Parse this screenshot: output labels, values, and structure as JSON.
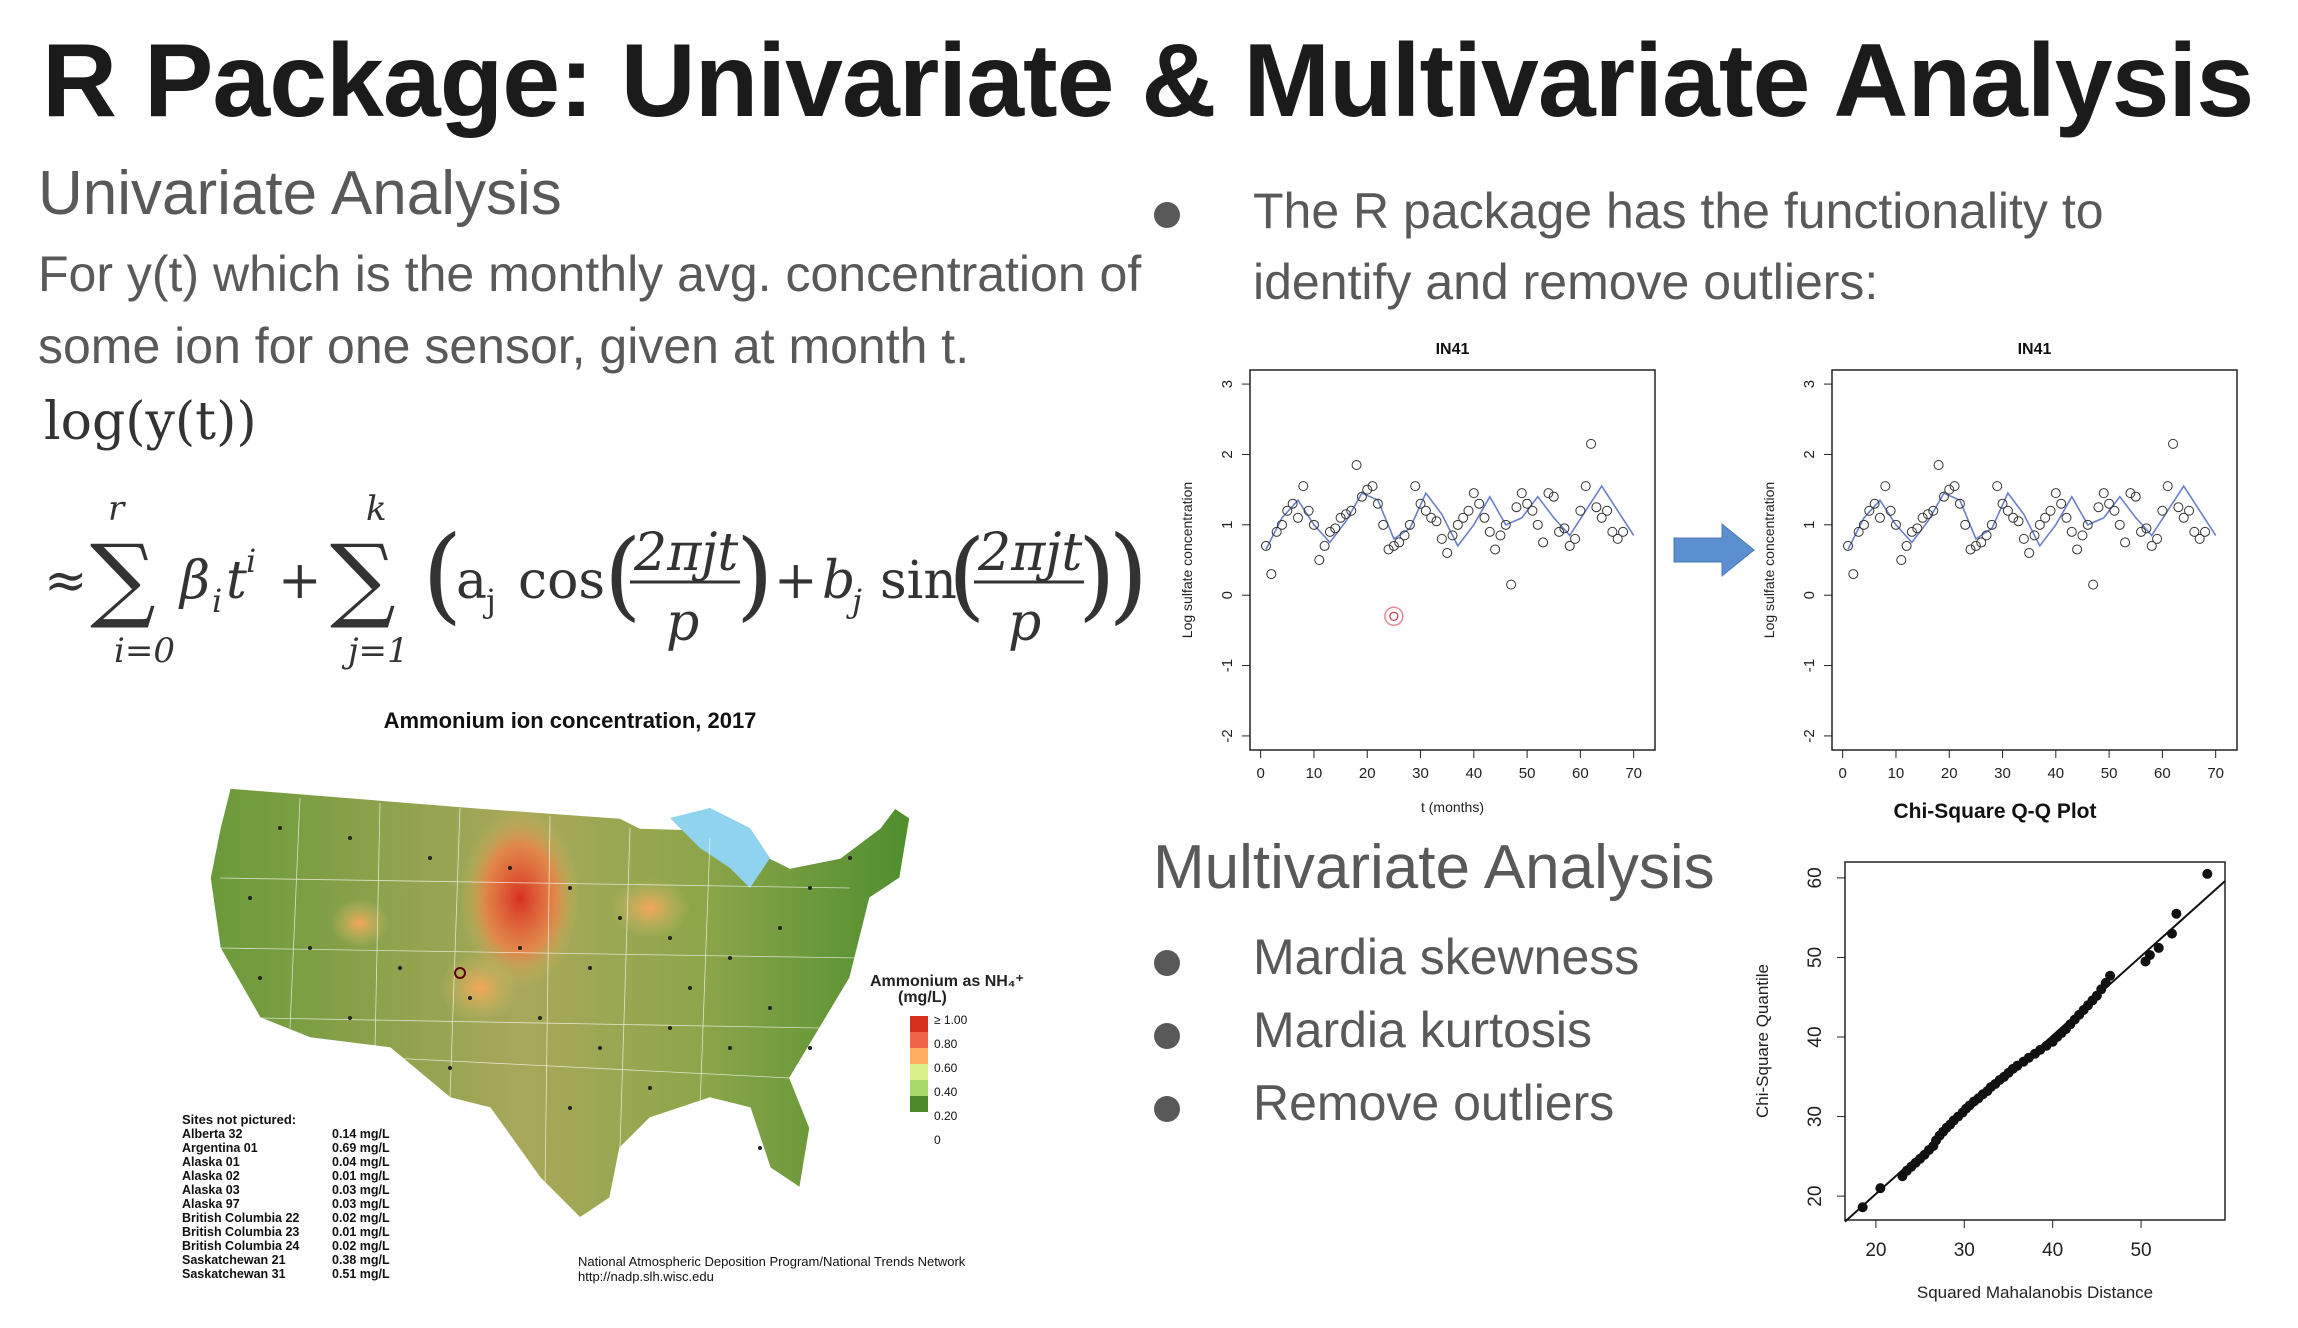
{
  "slide": {
    "title": "R Package: Univariate & Multivariate Analysis",
    "univariate_heading": "Univariate Analysis",
    "para_line1": "For y(t) which is the monthly avg. concentration of",
    "para_line2": "some ion for one sensor, given at month t.",
    "eq_line1": "log(y(t))",
    "right_bullet_line1": "The R package has the functionality to",
    "right_bullet_line2": "identify and remove outliers:",
    "multivariate_heading": "Multivariate Analysis",
    "multi_bullets": [
      "Mardia skewness",
      "Mardia kurtosis",
      "Remove outliers"
    ]
  },
  "map": {
    "title": "Ammonium ion concentration, 2017",
    "legend_title_line1": "Ammonium as NH₄⁺",
    "legend_title_line2": "(mg/L)",
    "legend_labels": [
      "≥ 1.00",
      "0.80",
      "0.60",
      "0.40",
      "0.20",
      "0"
    ],
    "legend_colors": [
      "#d7301f",
      "#ef6548",
      "#fdae61",
      "#d9ef8b",
      "#a6d96a",
      "#4d8a2a"
    ],
    "sites_header": "Sites not pictured:",
    "sites": [
      {
        "name": "Alberta 32",
        "value": "0.14 mg/L"
      },
      {
        "name": "Argentina 01",
        "value": "0.69 mg/L"
      },
      {
        "name": "Alaska 01",
        "value": "0.04 mg/L"
      },
      {
        "name": "Alaska 02",
        "value": "0.01 mg/L"
      },
      {
        "name": "Alaska 03",
        "value": "0.03 mg/L"
      },
      {
        "name": "Alaska 97",
        "value": "0.03 mg/L"
      },
      {
        "name": "British Columbia 22",
        "value": "0.02 mg/L"
      },
      {
        "name": "British Columbia 23",
        "value": "0.01 mg/L"
      },
      {
        "name": "British Columbia 24",
        "value": "0.02 mg/L"
      },
      {
        "name": "Saskatchewan 21",
        "value": "0.38 mg/L"
      },
      {
        "name": "Saskatchewan 31",
        "value": "0.51 mg/L"
      }
    ],
    "credit_line1": "National Atmospheric Deposition Program/National Trends Network",
    "credit_line2": "http://nadp.slh.wisc.edu"
  },
  "chart_data": [
    {
      "type": "scatter",
      "title": "IN41",
      "xlabel": "t (months)",
      "ylabel": "Log sulfate concentration",
      "xlim": [
        -2,
        74
      ],
      "ylim": [
        -2.2,
        3.2
      ],
      "xticks": [
        0,
        10,
        20,
        30,
        40,
        50,
        60,
        70
      ],
      "yticks": [
        -2,
        -1,
        0,
        1,
        2,
        3
      ],
      "series": [
        {
          "values": [
            [
              1,
              0.7
            ],
            [
              2,
              0.3
            ],
            [
              3,
              0.9
            ],
            [
              4,
              1.0
            ],
            [
              5,
              1.2
            ],
            [
              6,
              1.3
            ],
            [
              7,
              1.1
            ],
            [
              8,
              1.55
            ],
            [
              9,
              1.2
            ],
            [
              10,
              1.0
            ],
            [
              11,
              0.5
            ],
            [
              12,
              0.7
            ],
            [
              13,
              0.9
            ],
            [
              14,
              0.95
            ],
            [
              15,
              1.1
            ],
            [
              16,
              1.15
            ],
            [
              17,
              1.2
            ],
            [
              18,
              1.85
            ],
            [
              19,
              1.4
            ],
            [
              20,
              1.5
            ],
            [
              21,
              1.55
            ],
            [
              22,
              1.3
            ],
            [
              23,
              1.0
            ],
            [
              24,
              0.65
            ],
            [
              25,
              0.7
            ],
            [
              26,
              0.75
            ],
            [
              27,
              0.85
            ],
            [
              28,
              1.0
            ],
            [
              29,
              1.55
            ],
            [
              30,
              1.3
            ],
            [
              31,
              1.2
            ],
            [
              32,
              1.1
            ],
            [
              33,
              1.05
            ],
            [
              34,
              0.8
            ],
            [
              35,
              0.6
            ],
            [
              36,
              0.85
            ],
            [
              37,
              1.0
            ],
            [
              38,
              1.1
            ],
            [
              39,
              1.2
            ],
            [
              40,
              1.45
            ],
            [
              41,
              1.3
            ],
            [
              42,
              1.1
            ],
            [
              43,
              0.9
            ],
            [
              44,
              0.65
            ],
            [
              45,
              0.85
            ],
            [
              46,
              1.0
            ],
            [
              47,
              0.15
            ],
            [
              48,
              1.25
            ],
            [
              49,
              1.45
            ],
            [
              50,
              1.3
            ],
            [
              51,
              1.2
            ],
            [
              52,
              1.0
            ],
            [
              53,
              0.75
            ],
            [
              54,
              1.45
            ],
            [
              55,
              1.4
            ],
            [
              56,
              0.9
            ],
            [
              57,
              0.95
            ],
            [
              58,
              0.7
            ],
            [
              59,
              0.8
            ],
            [
              60,
              1.2
            ],
            [
              61,
              1.55
            ],
            [
              62,
              2.15
            ],
            [
              63,
              1.25
            ],
            [
              64,
              1.1
            ],
            [
              65,
              1.2
            ],
            [
              66,
              0.9
            ],
            [
              67,
              0.8
            ],
            [
              68,
              0.9
            ],
            [
              25,
              -0.3
            ]
          ]
        },
        {
          "name": "fit",
          "values": [
            [
              1,
              0.65
            ],
            [
              4,
              1.1
            ],
            [
              7,
              1.35
            ],
            [
              10,
              1.0
            ],
            [
              13,
              0.75
            ],
            [
              16,
              1.05
            ],
            [
              19,
              1.45
            ],
            [
              22,
              1.35
            ],
            [
              25,
              0.8
            ],
            [
              28,
              0.95
            ],
            [
              31,
              1.45
            ],
            [
              34,
              1.15
            ],
            [
              37,
              0.7
            ],
            [
              40,
              1.0
            ],
            [
              43,
              1.4
            ],
            [
              46,
              1.0
            ],
            [
              49,
              1.1
            ],
            [
              52,
              1.4
            ],
            [
              55,
              1.1
            ],
            [
              58,
              0.85
            ],
            [
              61,
              1.2
            ],
            [
              64,
              1.55
            ],
            [
              67,
              1.2
            ],
            [
              70,
              0.85
            ]
          ]
        }
      ],
      "outlier": [
        25,
        -0.3
      ]
    },
    {
      "type": "scatter",
      "title": "IN41",
      "xlabel": "",
      "ylabel": "Log sulfate concentration",
      "xlim": [
        -2,
        74
      ],
      "ylim": [
        -2.2,
        3.2
      ],
      "xticks": [
        0,
        10,
        20,
        30,
        40,
        50,
        60,
        70
      ],
      "yticks": [
        -2,
        -1,
        0,
        1,
        2,
        3
      ]
    },
    {
      "type": "scatter",
      "title": "Chi-Square Q-Q Plot",
      "xlabel": "Squared Mahalanobis Distance",
      "ylabel": "Chi-Square Quantile",
      "xlim": [
        16.5,
        59.5
      ],
      "ylim": [
        17,
        62
      ],
      "xticks": [
        20,
        30,
        40,
        50
      ],
      "yticks": [
        20,
        30,
        40,
        50,
        60
      ],
      "series": [
        {
          "values": [
            [
              18.5,
              18.6
            ],
            [
              20.5,
              21
            ],
            [
              23,
              22.5
            ],
            [
              23.5,
              23.2
            ],
            [
              24,
              23.7
            ],
            [
              24.5,
              24.2
            ],
            [
              25,
              24.7
            ],
            [
              25.5,
              25.2
            ],
            [
              26,
              25.8
            ],
            [
              26.5,
              26.3
            ],
            [
              26.8,
              27
            ],
            [
              27.2,
              27.6
            ],
            [
              27.6,
              28.1
            ],
            [
              28.0,
              28.6
            ],
            [
              28.4,
              29.0
            ],
            [
              28.8,
              29.5
            ],
            [
              29.3,
              30.0
            ],
            [
              29.8,
              30.5
            ],
            [
              30.2,
              31.0
            ],
            [
              30.6,
              31.4
            ],
            [
              31.1,
              31.9
            ],
            [
              31.6,
              32.3
            ],
            [
              32.1,
              32.8
            ],
            [
              32.6,
              33.2
            ],
            [
              33.0,
              33.7
            ],
            [
              33.5,
              34.1
            ],
            [
              34.0,
              34.6
            ],
            [
              34.5,
              35.0
            ],
            [
              35.0,
              35.5
            ],
            [
              35.5,
              36.0
            ],
            [
              36.0,
              36.4
            ],
            [
              36.7,
              36.9
            ],
            [
              37.3,
              37.4
            ],
            [
              38.0,
              37.9
            ],
            [
              38.6,
              38.4
            ],
            [
              39.3,
              38.9
            ],
            [
              40.0,
              39.4
            ],
            [
              40.5,
              40.0
            ],
            [
              41.0,
              40.5
            ],
            [
              41.5,
              41.0
            ],
            [
              42.0,
              41.6
            ],
            [
              42.5,
              42.2
            ],
            [
              43.0,
              42.8
            ],
            [
              43.5,
              43.4
            ],
            [
              44.0,
              44.0
            ],
            [
              44.5,
              44.6
            ],
            [
              45.0,
              45.2
            ],
            [
              45.5,
              46.0
            ],
            [
              46.0,
              46.8
            ],
            [
              46.5,
              47.7
            ],
            [
              50.5,
              49.5
            ],
            [
              51.0,
              50.3
            ],
            [
              52.0,
              51.2
            ],
            [
              53.5,
              53.0
            ],
            [
              54.0,
              55.5
            ],
            [
              57.5,
              60.5
            ]
          ]
        },
        {
          "name": "reference line",
          "values": [
            [
              16.5,
              16.8
            ],
            [
              59.5,
              59.6
            ]
          ]
        }
      ]
    }
  ]
}
